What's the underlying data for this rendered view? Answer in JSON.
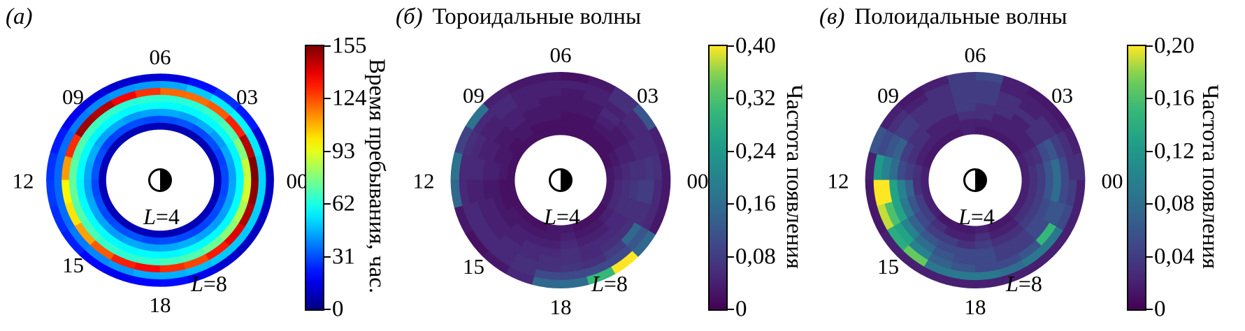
{
  "chart_data": [
    {
      "type": "heatmap",
      "polar": true,
      "tag": "(а)",
      "title": "",
      "mlt_tick_labels": [
        "00",
        "03",
        "06",
        "09",
        "12",
        "15",
        "18"
      ],
      "mlt_tick_hours": [
        0,
        3,
        6,
        9,
        12,
        15,
        18
      ],
      "l_range": [
        4,
        8
      ],
      "n_l_bins": 8,
      "n_mlt_bins": 24,
      "inner_label": "L=4",
      "outer_label": "L=8",
      "colormap": "jet",
      "vmin": 0,
      "vmax": 155,
      "colorbar_ticks": [
        0,
        31,
        62,
        93,
        124,
        155
      ],
      "colorbar_tick_labels": [
        "0",
        "31",
        "62",
        "93",
        "124",
        "155"
      ],
      "colorbar_label": "Время пребывания, час.",
      "values": [
        [
          8,
          8,
          8,
          7,
          8,
          8,
          9,
          8,
          8,
          8,
          9,
          8,
          8,
          9,
          8,
          8,
          8,
          9,
          8,
          8,
          8,
          9,
          8,
          8
        ],
        [
          30,
          29,
          31,
          30,
          32,
          31,
          30,
          31,
          30,
          29,
          31,
          32,
          30,
          31,
          30,
          31,
          32,
          30,
          31,
          30,
          29,
          30,
          31,
          30
        ],
        [
          44,
          45,
          43,
          46,
          44,
          45,
          44,
          43,
          45,
          44,
          46,
          45,
          44,
          45,
          44,
          43,
          45,
          44,
          45,
          46,
          44,
          43,
          44,
          45
        ],
        [
          58,
          57,
          59,
          58,
          57,
          58,
          59,
          57,
          58,
          57,
          59,
          58,
          57,
          58,
          59,
          58,
          57,
          58,
          57,
          59,
          58,
          57,
          58,
          59
        ],
        [
          88,
          78,
          70,
          66,
          64,
          64,
          65,
          64,
          66,
          68,
          70,
          72,
          73,
          71,
          69,
          66,
          65,
          66,
          68,
          70,
          74,
          79,
          84,
          90
        ],
        [
          155,
          147,
          131,
          122,
          119,
          120,
          128,
          137,
          147,
          150,
          129,
          112,
          98,
          101,
          111,
          122,
          131,
          135,
          129,
          125,
          132,
          140,
          148,
          153
        ],
        [
          52,
          55,
          57,
          55,
          50,
          45,
          43,
          42,
          40,
          38,
          36,
          35,
          35,
          36,
          38,
          40,
          42,
          45,
          46,
          48,
          50,
          50,
          51,
          52
        ],
        [
          10,
          13,
          23,
          26,
          21,
          14,
          12,
          12,
          14,
          17,
          23,
          27,
          28,
          26,
          24,
          20,
          17,
          19,
          21,
          16,
          12,
          10,
          10,
          10
        ]
      ]
    },
    {
      "type": "heatmap",
      "polar": true,
      "tag": "(б)",
      "title": "Тороидальные волны",
      "mlt_tick_labels": [
        "00",
        "03",
        "06",
        "09",
        "12",
        "15",
        "18"
      ],
      "mlt_tick_hours": [
        0,
        3,
        6,
        9,
        12,
        15,
        18
      ],
      "l_range": [
        4,
        8
      ],
      "n_l_bins": 8,
      "n_mlt_bins": 24,
      "inner_label": "L=4",
      "outer_label": "L=8",
      "colormap": "viridis",
      "vmin": 0,
      "vmax": 0.4,
      "colorbar_ticks": [
        0,
        0.08,
        0.16,
        0.24,
        0.32,
        0.4
      ],
      "colorbar_tick_labels": [
        "0",
        "0,08",
        "0,16",
        "0,24",
        "0,32",
        "0,40"
      ],
      "colorbar_label": "Частота появления",
      "values": [
        [
          0.03,
          0.02,
          0.02,
          0.02,
          0.02,
          0.02,
          0.02,
          0.02,
          0.02,
          0.02,
          0.02,
          0.02,
          0.02,
          0.02,
          0.02,
          0.02,
          0.02,
          0.03,
          0.03,
          0.02,
          0.02,
          0.02,
          0.03,
          0.03
        ],
        [
          0.04,
          0.03,
          0.02,
          0.02,
          0.02,
          0.02,
          0.02,
          0.02,
          0.03,
          0.02,
          0.03,
          0.03,
          0.02,
          0.02,
          0.03,
          0.03,
          0.03,
          0.03,
          0.04,
          0.03,
          0.03,
          0.04,
          0.05,
          0.05
        ],
        [
          0.05,
          0.04,
          0.03,
          0.03,
          0.02,
          0.02,
          0.03,
          0.03,
          0.03,
          0.03,
          0.03,
          0.04,
          0.03,
          0.03,
          0.03,
          0.04,
          0.04,
          0.04,
          0.05,
          0.04,
          0.04,
          0.05,
          0.06,
          0.06
        ],
        [
          0.06,
          0.04,
          0.03,
          0.04,
          0.03,
          0.03,
          0.03,
          0.03,
          0.04,
          0.03,
          0.04,
          0.04,
          0.03,
          0.04,
          0.04,
          0.04,
          0.05,
          0.05,
          0.06,
          0.05,
          0.05,
          0.05,
          0.06,
          0.07
        ],
        [
          0.06,
          0.05,
          0.04,
          0.05,
          0.03,
          0.03,
          0.03,
          0.04,
          0.04,
          0.04,
          0.04,
          0.05,
          0.04,
          0.04,
          0.04,
          0.05,
          0.05,
          0.06,
          0.06,
          0.05,
          0.06,
          0.06,
          0.06,
          0.08
        ],
        [
          0.07,
          0.05,
          0.05,
          0.04,
          0.04,
          0.03,
          0.04,
          0.04,
          0.05,
          0.04,
          0.05,
          0.05,
          0.04,
          0.05,
          0.05,
          0.05,
          0.06,
          0.06,
          0.07,
          0.06,
          0.08,
          0.15,
          0.06,
          0.08
        ],
        [
          0.06,
          0.05,
          0.05,
          0.06,
          0.04,
          0.04,
          0.04,
          0.04,
          0.05,
          0.05,
          0.06,
          0.05,
          0.05,
          0.05,
          0.05,
          0.05,
          0.06,
          0.1,
          0.1,
          0.1,
          0.1,
          0.12,
          0.05,
          0.05
        ],
        [
          0.03,
          0.04,
          0.12,
          0.06,
          0.03,
          0.02,
          0.03,
          0.03,
          0.04,
          0.17,
          0.09,
          0.17,
          0.15,
          0.03,
          0.02,
          0.03,
          0.05,
          0.15,
          0.16,
          0.3,
          0.4,
          0.15,
          0.03,
          0.03
        ]
      ]
    },
    {
      "type": "heatmap",
      "polar": true,
      "tag": "(в)",
      "title": "Полоидальные волны",
      "mlt_tick_labels": [
        "00",
        "03",
        "06",
        "09",
        "12",
        "15",
        "18"
      ],
      "mlt_tick_hours": [
        0,
        3,
        6,
        9,
        12,
        15,
        18
      ],
      "l_range": [
        4,
        8
      ],
      "n_l_bins": 8,
      "n_mlt_bins": 24,
      "inner_label": "L=4",
      "outer_label": "L=8",
      "colormap": "viridis",
      "vmin": 0,
      "vmax": 0.2,
      "colorbar_ticks": [
        0,
        0.04,
        0.08,
        0.12,
        0.16,
        0.2
      ],
      "colorbar_tick_labels": [
        "0",
        "0,04",
        "0,08",
        "0,12",
        "0,16",
        "0,20"
      ],
      "colorbar_label": "Частота появления",
      "values": [
        [
          0.02,
          0.02,
          0.015,
          0.015,
          0.015,
          0.015,
          0.02,
          0.015,
          0.015,
          0.015,
          0.015,
          0.02,
          0.02,
          0.02,
          0.02,
          0.015,
          0.015,
          0.015,
          0.02,
          0.015,
          0.015,
          0.02,
          0.02,
          0.02
        ],
        [
          0.03,
          0.025,
          0.02,
          0.02,
          0.02,
          0.02,
          0.02,
          0.02,
          0.02,
          0.02,
          0.02,
          0.03,
          0.03,
          0.04,
          0.04,
          0.03,
          0.02,
          0.02,
          0.03,
          0.02,
          0.02,
          0.03,
          0.03,
          0.03
        ],
        [
          0.04,
          0.03,
          0.02,
          0.02,
          0.02,
          0.03,
          0.03,
          0.02,
          0.02,
          0.03,
          0.03,
          0.04,
          0.07,
          0.06,
          0.05,
          0.04,
          0.04,
          0.03,
          0.04,
          0.03,
          0.03,
          0.04,
          0.04,
          0.04
        ],
        [
          0.06,
          0.05,
          0.03,
          0.02,
          0.03,
          0.03,
          0.04,
          0.03,
          0.03,
          0.03,
          0.04,
          0.05,
          0.1,
          0.09,
          0.07,
          0.06,
          0.05,
          0.05,
          0.05,
          0.04,
          0.04,
          0.05,
          0.05,
          0.06
        ],
        [
          0.08,
          0.06,
          0.03,
          0.03,
          0.03,
          0.04,
          0.04,
          0.03,
          0.03,
          0.04,
          0.07,
          0.08,
          0.13,
          0.13,
          0.1,
          0.08,
          0.06,
          0.05,
          0.05,
          0.04,
          0.04,
          0.05,
          0.06,
          0.08
        ],
        [
          0.05,
          0.04,
          0.03,
          0.02,
          0.03,
          0.04,
          0.04,
          0.03,
          0.03,
          0.04,
          0.06,
          0.1,
          0.2,
          0.16,
          0.13,
          0.1,
          0.07,
          0.06,
          0.05,
          0.05,
          0.06,
          0.15,
          0.06,
          0.05
        ],
        [
          0.03,
          0.03,
          0.02,
          0.02,
          0.02,
          0.04,
          0.04,
          0.03,
          0.02,
          0.03,
          0.05,
          0.12,
          0.2,
          0.19,
          0.14,
          0.17,
          0.09,
          0.09,
          0.09,
          0.08,
          0.09,
          0.09,
          0.05,
          0.04
        ],
        [
          0.03,
          0.02,
          0.015,
          0.015,
          0.02,
          0.05,
          0.04,
          0.02,
          0.015,
          0.02,
          0.06,
          0.02,
          0.015,
          0.015,
          0.02,
          0.02,
          0.02,
          0.02,
          0.02,
          0.02,
          0.02,
          0.02,
          0.02,
          0.02
        ]
      ]
    }
  ]
}
